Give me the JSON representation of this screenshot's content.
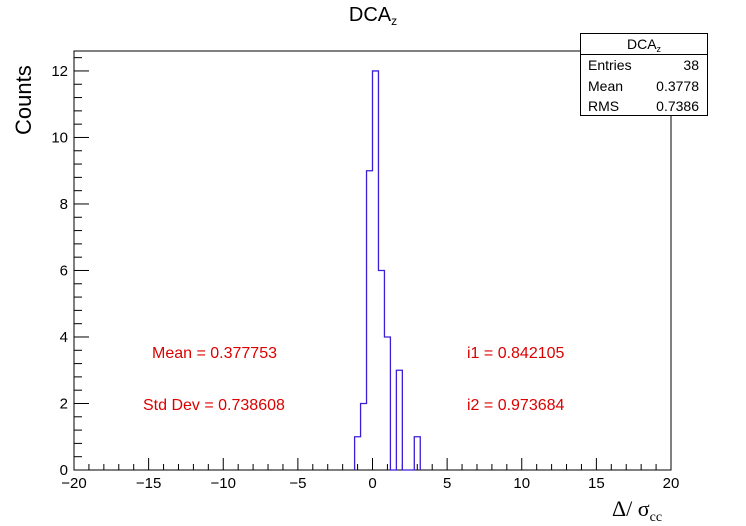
{
  "title_main": "DCA",
  "title_sub": "z",
  "xlabel_main": "Δ/ σ",
  "xlabel_sub": "cc",
  "ylabel": "Counts",
  "stats": {
    "title_main": "DCA",
    "title_sub": "z",
    "rows": [
      {
        "label": "Entries",
        "value": "38"
      },
      {
        "label": "Mean",
        "value": "0.3778"
      },
      {
        "label": "RMS",
        "value": "0.7386"
      }
    ]
  },
  "annotations": {
    "mean": "Mean = 0.377753",
    "std": "Std Dev = 0.738608",
    "i1": "i1 = 0.842105",
    "i2": "i2 = 0.973684"
  },
  "colors": {
    "histogram": "#3b1fd6",
    "annotation": "#dd0000",
    "axis": "#000000"
  },
  "chart_data": {
    "type": "bar",
    "style": "step-histogram",
    "xlim": [
      -20,
      20
    ],
    "ylim": [
      0,
      12.6
    ],
    "bin_width": 0.4,
    "xticks": [
      -20,
      -15,
      -10,
      -5,
      0,
      5,
      10,
      15,
      20
    ],
    "xtick_labels": [
      "−20",
      "−15",
      "−10",
      "−5",
      "0",
      "5",
      "10",
      "15",
      "20"
    ],
    "yticks": [
      0,
      2,
      4,
      6,
      8,
      10,
      12
    ],
    "bins": [
      {
        "x": -1.2,
        "count": 1
      },
      {
        "x": -0.8,
        "count": 2
      },
      {
        "x": -0.4,
        "count": 9
      },
      {
        "x": 0.0,
        "count": 12
      },
      {
        "x": 0.4,
        "count": 6
      },
      {
        "x": 0.8,
        "count": 4
      },
      {
        "x": 1.2,
        "count": 0
      },
      {
        "x": 1.6,
        "count": 3
      },
      {
        "x": 2.0,
        "count": 0
      },
      {
        "x": 2.4,
        "count": 0
      },
      {
        "x": 2.8,
        "count": 1
      }
    ]
  }
}
